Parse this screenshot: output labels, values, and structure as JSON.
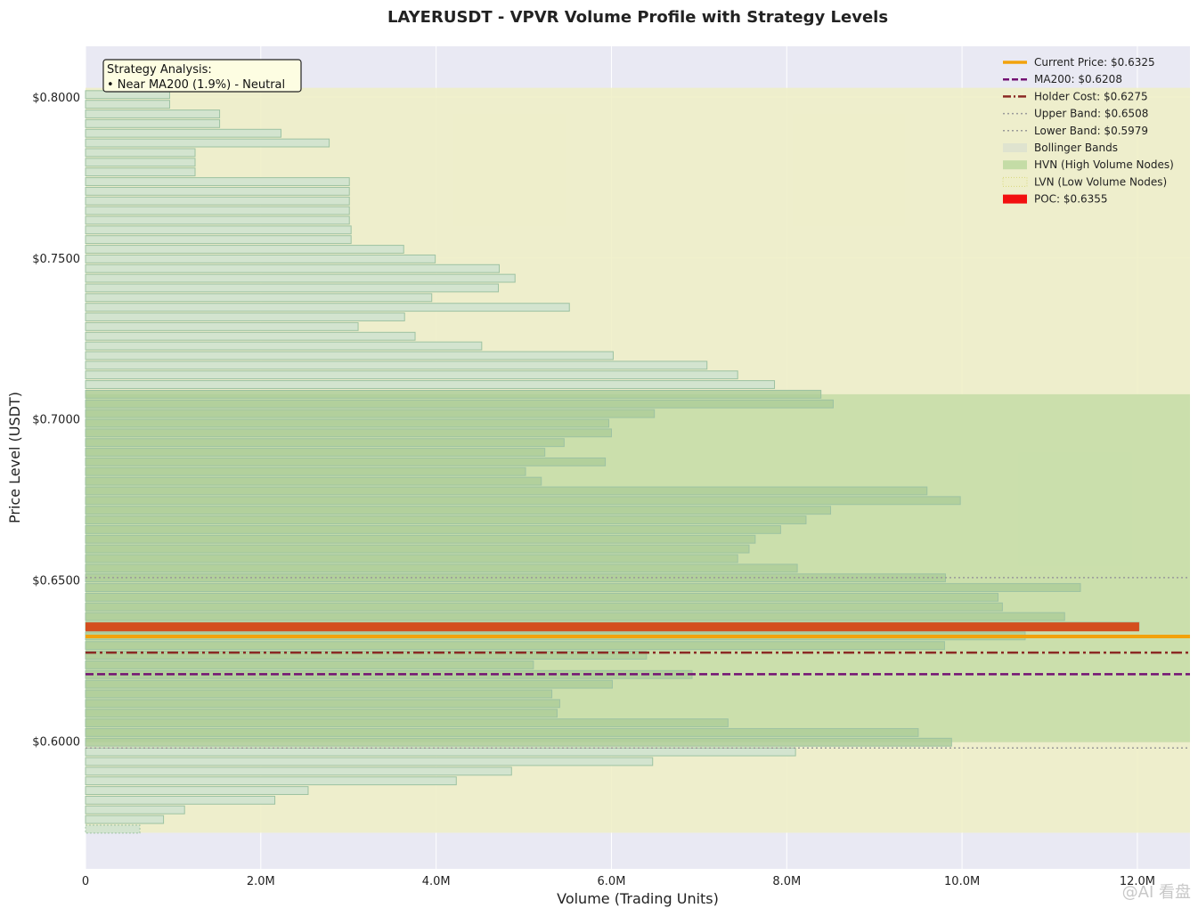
{
  "chart_data": {
    "type": "bar",
    "orientation": "horizontal",
    "title": "LAYERUSDT - VPVR Volume Profile with Strategy Levels",
    "xlabel": "Volume (Trading Units)",
    "ylabel": "Price Level (USDT)",
    "xlim": [
      0,
      12600000
    ],
    "ylim": [
      0.5604,
      0.8157
    ],
    "x_ticks": [
      0,
      2000000,
      4000000,
      6000000,
      8000000,
      10000000,
      12000000
    ],
    "x_tick_labels": [
      "0",
      "2.0M",
      "4.0M",
      "6.0M",
      "8.0M",
      "10.0M",
      "12.0M"
    ],
    "y_ticks": [
      0.6,
      0.65,
      0.7,
      0.75,
      0.8
    ],
    "y_tick_labels": [
      "$0.6000",
      "$0.6500",
      "$0.7000",
      "$0.7500",
      "$0.8000"
    ],
    "grid": true,
    "legend_position": "top-right",
    "bin_size": 0.003,
    "price_levels": [
      0.5727,
      0.5757,
      0.5787,
      0.5817,
      0.5847,
      0.5877,
      0.5907,
      0.5937,
      0.5967,
      0.5997,
      0.6027,
      0.6057,
      0.6087,
      0.6117,
      0.6147,
      0.6177,
      0.6207,
      0.6237,
      0.6267,
      0.6297,
      0.6327,
      0.6357,
      0.6387,
      0.6417,
      0.6447,
      0.6477,
      0.6507,
      0.6537,
      0.6567,
      0.6597,
      0.6627,
      0.6657,
      0.6687,
      0.6717,
      0.6747,
      0.6777,
      0.6807,
      0.6837,
      0.6867,
      0.6897,
      0.6927,
      0.6957,
      0.6987,
      0.7017,
      0.7047,
      0.7077,
      0.7107,
      0.7137,
      0.7167,
      0.7197,
      0.7227,
      0.7257,
      0.7287,
      0.7317,
      0.7347,
      0.7377,
      0.7407,
      0.7437,
      0.7467,
      0.7497,
      0.7527,
      0.7557,
      0.7587,
      0.7617,
      0.7647,
      0.7677,
      0.7707,
      0.7737,
      0.7767,
      0.7797,
      0.7827,
      0.7857,
      0.7887,
      0.7917,
      0.7947,
      0.7977,
      0.8007
    ],
    "volumes": [
      620000,
      890000,
      1130000,
      2160000,
      2540000,
      4230000,
      4860000,
      6470000,
      8100000,
      9880000,
      9500000,
      7330000,
      5380000,
      5410000,
      5320000,
      6010000,
      6920000,
      5110000,
      6400000,
      9800000,
      10720000,
      12020000,
      11170000,
      10460000,
      10410000,
      11350000,
      9810000,
      8120000,
      7440000,
      7570000,
      7640000,
      7930000,
      8220000,
      8500000,
      9980000,
      9600000,
      5200000,
      5020000,
      5930000,
      5240000,
      5460000,
      6000000,
      5970000,
      6490000,
      8530000,
      8390000,
      7860000,
      7440000,
      7090000,
      6020000,
      4520000,
      3760000,
      3110000,
      3640000,
      5520000,
      3950000,
      4710000,
      4900000,
      4720000,
      3990000,
      3630000,
      3030000,
      3030000,
      3010000,
      3010000,
      3010000,
      3010000,
      3010000,
      1250000,
      1250000,
      1250000,
      2780000,
      2230000,
      1530000,
      1530000,
      960000,
      960000
    ],
    "hvn_range": [
      0.5997,
      0.7077
    ],
    "lvn_levels": [
      0.5727
    ],
    "bollinger_bands": {
      "upper": 0.6508,
      "lower": 0.5979,
      "band_top": 0.8028,
      "band_bottom": 0.5716
    },
    "lines": {
      "current_price": 0.6325,
      "ma200": 0.6208,
      "holder_cost": 0.6275,
      "upper_band": 0.6508,
      "lower_band": 0.5979,
      "poc": 0.6355
    },
    "poc_volume": 12020000,
    "colors": {
      "background": "#e9e9f3",
      "bollinger_fill": "#efefc4",
      "hvn_fill": "#c4dca6",
      "bar_fill": "#cfe2cf",
      "bar_edge": "#9dc2a2",
      "current_price": "#f2a20c",
      "ma200": "#731273",
      "holder_cost": "#8b2a24",
      "band_line": "#999999",
      "poc": "#d44e1e",
      "poc_legend": "#f21010",
      "annotation_bg": "#fdfde2"
    },
    "legend": [
      {
        "label": "Current Price: $0.6325",
        "kind": "line",
        "style": "solid",
        "color_key": "current_price"
      },
      {
        "label": "MA200: $0.6208",
        "kind": "line",
        "style": "dashed",
        "color_key": "ma200"
      },
      {
        "label": "Holder Cost: $0.6275",
        "kind": "line",
        "style": "dashdot",
        "color_key": "holder_cost"
      },
      {
        "label": "Upper Band: $0.6508",
        "kind": "line",
        "style": "dotted",
        "color_key": "band_line"
      },
      {
        "label": "Lower Band: $0.5979",
        "kind": "line",
        "style": "dotted",
        "color_key": "band_line"
      },
      {
        "label": "Bollinger Bands",
        "kind": "patch",
        "style": "bollinger",
        "color_key": "bollinger_fill"
      },
      {
        "label": "HVN (High Volume Nodes)",
        "kind": "patch",
        "style": "hvn",
        "color_key": "hvn_fill"
      },
      {
        "label": "LVN (Low Volume Nodes)",
        "kind": "patch",
        "style": "lvn",
        "color_key": "bollinger_fill"
      },
      {
        "label": "POC: $0.6355",
        "kind": "patch",
        "style": "poc",
        "color_key": "poc_legend"
      }
    ],
    "annotation": {
      "line1": "Strategy Analysis:",
      "line2": "• Near MA200 (1.9%) - Neutral"
    }
  },
  "watermark": "@AI 看盘"
}
